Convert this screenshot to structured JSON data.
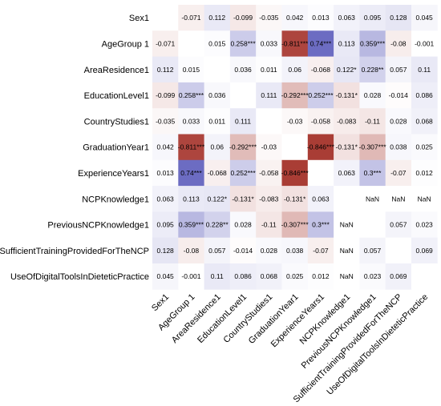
{
  "chart_data": {
    "type": "heatmap",
    "labels": [
      "Sex1",
      "AgeGroup  1",
      "AreaResidence1",
      "EducationLevel1",
      "CountryStudies1",
      "GraduationYear1",
      "ExperienceYears1",
      "NCPKnowledge1",
      "PreviousNCPKnowledge1",
      "SufficientTrainingProvidedForTheNCP",
      "UseOfDigitalToolsInDieteticPractice"
    ],
    "values": [
      [
        null,
        -0.071,
        0.112,
        -0.099,
        -0.035,
        0.042,
        0.013,
        0.063,
        0.095,
        0.128,
        0.045
      ],
      [
        -0.071,
        null,
        0.015,
        0.258,
        0.033,
        -0.811,
        0.74,
        0.113,
        0.359,
        -0.08,
        -0.001
      ],
      [
        0.112,
        0.015,
        null,
        0.036,
        0.011,
        0.06,
        -0.068,
        0.122,
        0.228,
        0.057,
        0.11
      ],
      [
        -0.099,
        0.258,
        0.036,
        null,
        0.111,
        -0.292,
        0.252,
        -0.131,
        0.028,
        -0.014,
        0.086
      ],
      [
        -0.035,
        0.033,
        0.011,
        0.111,
        null,
        -0.03,
        -0.058,
        -0.083,
        -0.11,
        0.028,
        0.068
      ],
      [
        0.042,
        -0.811,
        0.06,
        -0.292,
        -0.03,
        null,
        -0.846,
        -0.131,
        -0.307,
        0.038,
        0.025
      ],
      [
        0.013,
        0.74,
        -0.068,
        0.252,
        -0.058,
        -0.846,
        null,
        0.063,
        0.3,
        -0.07,
        0.012
      ],
      [
        0.063,
        0.113,
        0.122,
        -0.131,
        -0.083,
        -0.131,
        0.063,
        null,
        "NaN",
        "NaN",
        "NaN"
      ],
      [
        0.095,
        0.359,
        0.228,
        0.028,
        -0.11,
        -0.307,
        0.3,
        "NaN",
        null,
        0.057,
        0.023
      ],
      [
        0.128,
        -0.08,
        0.057,
        -0.014,
        0.028,
        0.038,
        -0.07,
        "NaN",
        0.057,
        null,
        0.069
      ],
      [
        0.045,
        -0.001,
        0.11,
        0.086,
        0.068,
        0.025,
        0.012,
        "NaN",
        0.023,
        0.069,
        null
      ]
    ],
    "cell_text": [
      [
        "",
        "-0.071",
        "0.112",
        "-0.099",
        "-0.035",
        "0.042",
        "0.013",
        "0.063",
        "0.095",
        "0.128",
        "0.045"
      ],
      [
        "-0.071",
        "",
        "0.015",
        "0.258***",
        "0.033",
        "-0.811***",
        "0.74***",
        "0.113",
        "0.359***",
        "-0.08",
        "-0.001"
      ],
      [
        "0.112",
        "0.015",
        "",
        "0.036",
        "0.011",
        "0.06",
        "-0.068",
        "0.122*",
        "0.228**",
        "0.057",
        "0.11"
      ],
      [
        "-0.099",
        "0.258***",
        "0.036",
        "",
        "0.111",
        "-0.292***",
        "0.252***",
        "-0.131*",
        "0.028",
        "-0.014",
        "0.086"
      ],
      [
        "-0.035",
        "0.033",
        "0.011",
        "0.111",
        "",
        "-0.03",
        "-0.058",
        "-0.083",
        "-0.11",
        "0.028",
        "0.068"
      ],
      [
        "0.042",
        "-0.811***",
        "0.06",
        "-0.292***",
        "-0.03",
        "",
        "-0.846***",
        "-0.131*",
        "-0.307***",
        "0.038",
        "0.025"
      ],
      [
        "0.013",
        "0.74***",
        "-0.068",
        "0.252***",
        "-0.058",
        "-0.846***",
        "",
        "0.063",
        "0.3***",
        "-0.07",
        "0.012"
      ],
      [
        "0.063",
        "0.113",
        "0.122*",
        "-0.131*",
        "-0.083",
        "-0.131*",
        "0.063",
        "",
        "NaN",
        "NaN",
        "NaN"
      ],
      [
        "0.095",
        "0.359***",
        "0.228**",
        "0.028",
        "-0.11",
        "-0.307***",
        "0.3***",
        "NaN",
        "",
        "0.057",
        "0.023"
      ],
      [
        "0.128",
        "-0.08",
        "0.057",
        "-0.014",
        "0.028",
        "0.038",
        "-0.07",
        "NaN",
        "0.057",
        "",
        "0.069"
      ],
      [
        "0.045",
        "-0.001",
        "0.11",
        "0.086",
        "0.068",
        "0.025",
        "0.012",
        "NaN",
        "0.023",
        "0.069",
        ""
      ]
    ],
    "value_range": [
      -1,
      1
    ],
    "colors": {
      "positive": "#5454b8",
      "negative": "#a83a32",
      "neutral": "#ffffff"
    },
    "grid": false,
    "legend": "none"
  }
}
